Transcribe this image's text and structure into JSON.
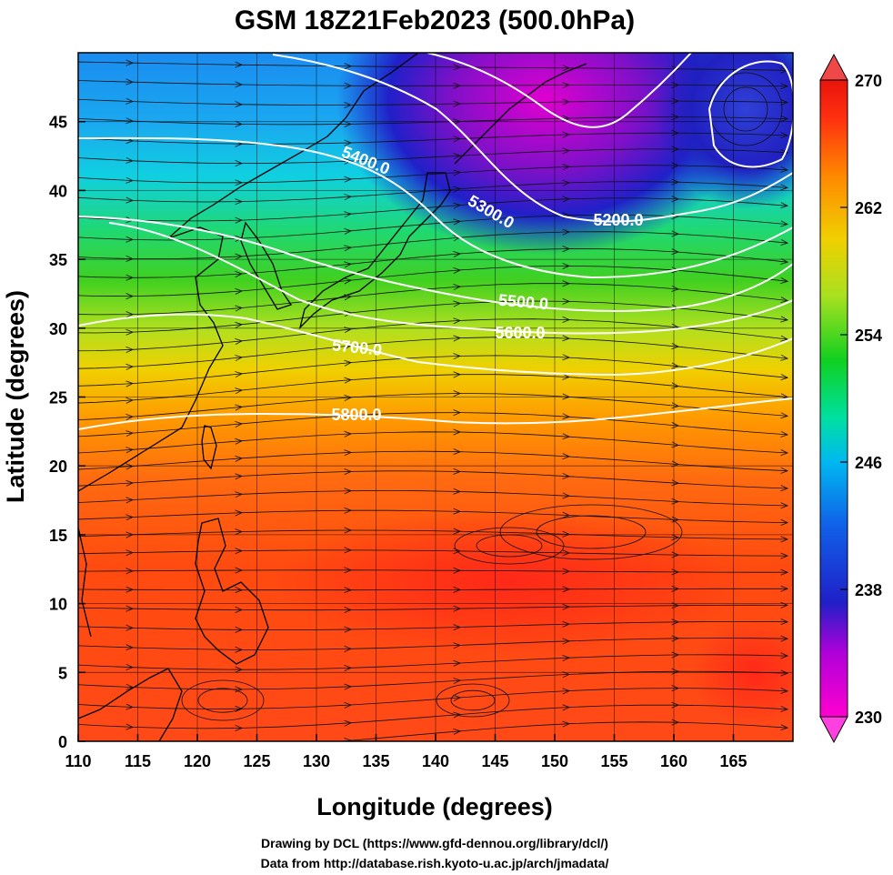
{
  "title": "GSM 18Z21Feb2023 (500.0hPa)",
  "x_axis": {
    "label": "Longitude (degrees)",
    "ticks": [
      "110",
      "115",
      "120",
      "125",
      "130",
      "135",
      "140",
      "145",
      "150",
      "155",
      "160",
      "165"
    ],
    "range": [
      110,
      170
    ]
  },
  "y_axis": {
    "label": "Latitude  (degrees)",
    "ticks": [
      "0",
      "5",
      "10",
      "15",
      "20",
      "25",
      "30",
      "35",
      "40",
      "45"
    ],
    "range": [
      0,
      50
    ]
  },
  "colorbar": {
    "ticks": [
      "230",
      "238",
      "246",
      "254",
      "262",
      "270"
    ],
    "range": [
      230,
      270
    ],
    "colors": [
      "#ff00d0",
      "#b000d8",
      "#2020c8",
      "#1060e8",
      "#00b8f0",
      "#00e0a0",
      "#10d020",
      "#a8e020",
      "#f0d000",
      "#ff8800",
      "#ff3010",
      "#e8140c"
    ]
  },
  "contours": [
    {
      "label": "5200.0"
    },
    {
      "label": "5300.0"
    },
    {
      "label": "5400.0"
    },
    {
      "label": "5500.0"
    },
    {
      "label": "5600.0"
    },
    {
      "label": "5700.0"
    },
    {
      "label": "5800.0"
    }
  ],
  "credits": {
    "line1": "Drawing by DCL (https://www.gfd-dennou.org/library/dcl/)",
    "line2": "Data from http://database.rish.kyoto-u.ac.jp/arch/jmadata/"
  },
  "icons": [
    "colorbar-max-triangle-icon",
    "colorbar-min-triangle-icon"
  ]
}
